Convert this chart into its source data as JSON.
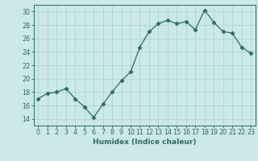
{
  "x": [
    0,
    1,
    2,
    3,
    4,
    5,
    6,
    7,
    8,
    9,
    10,
    11,
    12,
    13,
    14,
    15,
    16,
    17,
    18,
    19,
    20,
    21,
    22,
    23
  ],
  "y": [
    17,
    17.8,
    18,
    18.5,
    17,
    15.8,
    14.2,
    16.2,
    18,
    19.7,
    21,
    24.7,
    27,
    28.2,
    28.7,
    28.2,
    28.5,
    27.3,
    30.2,
    28.4,
    27,
    26.8,
    24.7,
    23.8
  ],
  "line_color": "#2d6b5e",
  "marker": "D",
  "marker_size": 2.5,
  "bg_color": "#cce8e8",
  "grid_color": "#add4d4",
  "tick_color": "#2d6b5e",
  "xlabel": "Humidex (Indice chaleur)",
  "ylim": [
    13,
    31
  ],
  "yticks": [
    14,
    16,
    18,
    20,
    22,
    24,
    26,
    28,
    30
  ],
  "xticks": [
    0,
    1,
    2,
    3,
    4,
    5,
    6,
    7,
    8,
    9,
    10,
    11,
    12,
    13,
    14,
    15,
    16,
    17,
    18,
    19,
    20,
    21,
    22,
    23
  ],
  "label_fontsize": 6.5,
  "tick_fontsize": 5.8
}
